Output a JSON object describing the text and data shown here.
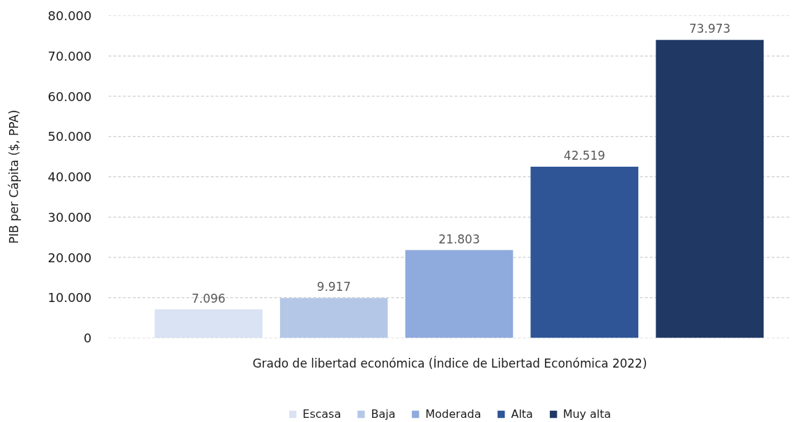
{
  "chart_data": {
    "type": "bar",
    "xlabel": "Grado de libertad económica (Índice de Libertad Económica 2022)",
    "ylabel": "PIB per Cápita ($, PPA)",
    "categories": [
      null,
      null,
      null,
      null,
      null
    ],
    "series": [
      {
        "name": "Escasa",
        "color": "#dae3f3",
        "values": [
          7096,
          null,
          null,
          null,
          null
        ],
        "value_labels": [
          "7.096",
          null,
          null,
          null,
          null
        ]
      },
      {
        "name": "Baja",
        "color": "#b4c7e7",
        "values": [
          null,
          9917,
          null,
          null,
          null
        ],
        "value_labels": [
          null,
          "9.917",
          null,
          null,
          null
        ]
      },
      {
        "name": "Moderada",
        "color": "#8faadc",
        "values": [
          null,
          null,
          21803,
          null,
          null
        ],
        "value_labels": [
          null,
          null,
          "21.803",
          null,
          null
        ]
      },
      {
        "name": "Alta",
        "color": "#2f5597",
        "values": [
          null,
          null,
          null,
          42519,
          null
        ],
        "value_labels": [
          null,
          null,
          null,
          "42.519",
          null
        ]
      },
      {
        "name": "Muy alta",
        "color": "#203864",
        "values": [
          null,
          null,
          null,
          null,
          73973
        ],
        "value_labels": [
          null,
          null,
          null,
          null,
          "73.973"
        ]
      }
    ],
    "ylim": [
      0,
      80000
    ],
    "yticks": [
      0,
      {
        "value": 10000,
        "label": "10.000"
      },
      {
        "value": 20000,
        "label": "20.000"
      },
      {
        "value": 30000,
        "label": "30.000"
      },
      {
        "value": 40000,
        "label": "40.000"
      },
      {
        "value": 50000,
        "label": "50.000"
      },
      {
        "value": 60000,
        "label": "60.000"
      },
      {
        "value": 70000,
        "label": "70.000"
      },
      {
        "value": 80000,
        "label": "80.000"
      }
    ],
    "grid": "y",
    "legend": "bottom"
  }
}
